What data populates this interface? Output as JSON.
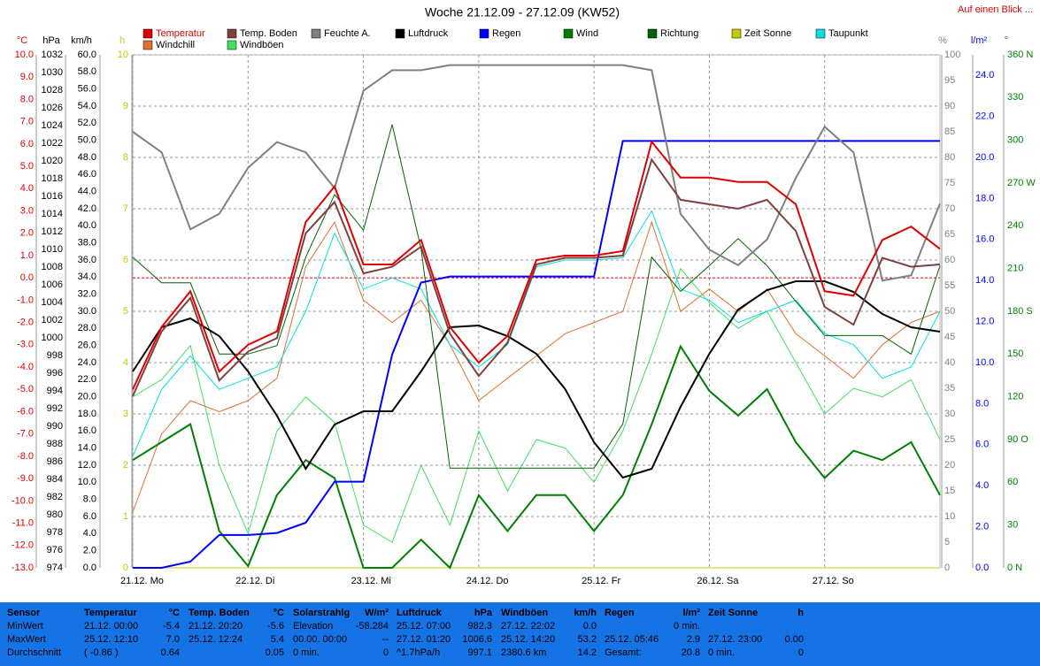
{
  "chart_data": {
    "type": "line",
    "title": "Woche 21.12.09 - 27.12.09 (KW52)",
    "xlim": [
      0,
      168
    ],
    "xticks": [
      {
        "value": 0,
        "label": "21.12. Mo"
      },
      {
        "value": 24,
        "label": "22.12. Di"
      },
      {
        "value": 48,
        "label": "23.12. Mi"
      },
      {
        "value": 72,
        "label": "24.12. Do"
      },
      {
        "value": 96,
        "label": "25.12. Fr"
      },
      {
        "value": 120,
        "label": "26.12. Sa"
      },
      {
        "value": 144,
        "label": "27.12. So"
      }
    ],
    "x": [
      0,
      6,
      12,
      18,
      24,
      30,
      36,
      42,
      48,
      54,
      60,
      66,
      72,
      78,
      84,
      90,
      96,
      102,
      108,
      114,
      120,
      126,
      132,
      138,
      144,
      150,
      156,
      162,
      168
    ],
    "axes": [
      {
        "label": "°C",
        "color": "#e00000",
        "lim": [
          -13,
          10
        ],
        "reference_line": 0,
        "ticks": [
          {
            "value": -13,
            "label": "-13.0"
          },
          {
            "value": -12,
            "label": "-12.0"
          },
          {
            "value": -11,
            "label": "-11.0"
          },
          {
            "value": -10,
            "label": "-10.0"
          },
          {
            "value": -9,
            "label": "-9.0"
          },
          {
            "value": -8,
            "label": "-8.0"
          },
          {
            "value": -7,
            "label": "-7.0"
          },
          {
            "value": -6,
            "label": "-6.0"
          },
          {
            "value": -5,
            "label": "-5.0"
          },
          {
            "value": -4,
            "label": "-4.0"
          },
          {
            "value": -3,
            "label": "-3.0"
          },
          {
            "value": -2,
            "label": "-2.0"
          },
          {
            "value": -1,
            "label": "-1.0"
          },
          {
            "value": 0,
            "label": "0.0"
          },
          {
            "value": 1,
            "label": "1.0"
          },
          {
            "value": 2,
            "label": "2.0"
          },
          {
            "value": 3,
            "label": "3.0"
          },
          {
            "value": 4,
            "label": "4.0"
          },
          {
            "value": 5,
            "label": "5.0"
          },
          {
            "value": 6,
            "label": "6.0"
          },
          {
            "value": 7,
            "label": "7.0"
          },
          {
            "value": 8,
            "label": "8.0"
          },
          {
            "value": 9,
            "label": "9.0"
          },
          {
            "value": 10,
            "label": "10.0"
          }
        ]
      },
      {
        "label": "hPa",
        "color": "#000000",
        "lim": [
          974,
          1032
        ],
        "ticks": [
          974,
          976,
          978,
          980,
          982,
          984,
          986,
          988,
          990,
          992,
          994,
          996,
          998,
          1000,
          1002,
          1004,
          1006,
          1008,
          1010,
          1012,
          1014,
          1016,
          1018,
          1020,
          1022,
          1024,
          1026,
          1028,
          1030,
          1032
        ]
      },
      {
        "label": "km/h",
        "color": "#000000",
        "lim": [
          0,
          60
        ],
        "ticks": [
          {
            "value": 0,
            "label": "0.0"
          },
          {
            "value": 2,
            "label": "2.0"
          },
          {
            "value": 4,
            "label": "4.0"
          },
          {
            "value": 6,
            "label": "6.0"
          },
          {
            "value": 8,
            "label": "8.0"
          },
          {
            "value": 10,
            "label": "10.0"
          },
          {
            "value": 12,
            "label": "12.0"
          },
          {
            "value": 14,
            "label": "14.0"
          },
          {
            "value": 16,
            "label": "16.0"
          },
          {
            "value": 18,
            "label": "18.0"
          },
          {
            "value": 20,
            "label": "20.0"
          },
          {
            "value": 22,
            "label": "22.0"
          },
          {
            "value": 24,
            "label": "24.0"
          },
          {
            "value": 26,
            "label": "26.0"
          },
          {
            "value": 28,
            "label": "28.0"
          },
          {
            "value": 30,
            "label": "30.0"
          },
          {
            "value": 32,
            "label": "32.0"
          },
          {
            "value": 34,
            "label": "34.0"
          },
          {
            "value": 36,
            "label": "36.0"
          },
          {
            "value": 38,
            "label": "38.0"
          },
          {
            "value": 40,
            "label": "40.0"
          },
          {
            "value": 42,
            "label": "42.0"
          },
          {
            "value": 44,
            "label": "44.0"
          },
          {
            "value": 46,
            "label": "46.0"
          },
          {
            "value": 48,
            "label": "48.0"
          },
          {
            "value": 50,
            "label": "50.0"
          },
          {
            "value": 52,
            "label": "52.0"
          },
          {
            "value": 54,
            "label": "54.0"
          },
          {
            "value": 56,
            "label": "56.0"
          },
          {
            "value": 58,
            "label": "58.0"
          },
          {
            "value": 60,
            "label": "60.0"
          }
        ]
      },
      {
        "label": "h",
        "color": "#c8c800",
        "lim": [
          0,
          10
        ],
        "grid": true,
        "ticks": [
          0,
          1,
          2,
          3,
          4,
          5,
          6,
          7,
          8,
          9,
          10
        ]
      },
      {
        "label": "%",
        "color": "#808080",
        "lim": [
          0,
          100
        ],
        "ticks": [
          0,
          5,
          10,
          15,
          20,
          25,
          30,
          35,
          40,
          45,
          50,
          55,
          60,
          65,
          70,
          75,
          80,
          85,
          90,
          95,
          100
        ]
      },
      {
        "label": "l/m²",
        "color": "#0000ff",
        "lim": [
          0,
          25
        ],
        "ticks": [
          {
            "value": 0,
            "label": "0.0"
          },
          {
            "value": 2,
            "label": "2.0"
          },
          {
            "value": 4,
            "label": "4.0"
          },
          {
            "value": 6,
            "label": "6.0"
          },
          {
            "value": 8,
            "label": "8.0"
          },
          {
            "value": 10,
            "label": "10.0"
          },
          {
            "value": 12,
            "label": "12.0"
          },
          {
            "value": 14,
            "label": "14.0"
          },
          {
            "value": 16,
            "label": "16.0"
          },
          {
            "value": 18,
            "label": "18.0"
          },
          {
            "value": 20,
            "label": "20.0"
          },
          {
            "value": 22,
            "label": "22.0"
          },
          {
            "value": 24,
            "label": "24.0"
          }
        ]
      },
      {
        "label": "°",
        "color": "#008000",
        "lim": [
          0,
          360
        ],
        "ticks": [
          {
            "value": 0,
            "label": "0 N"
          },
          30,
          60,
          {
            "value": 90,
            "label": "90 O"
          },
          120,
          150,
          {
            "value": 180,
            "label": "180 S"
          },
          210,
          240,
          {
            "value": 270,
            "label": "270 W"
          },
          300,
          330,
          {
            "value": 360,
            "label": "360 N"
          }
        ]
      }
    ],
    "series": [
      {
        "name": "Temperatur",
        "color": "#e00000",
        "axis": 0,
        "width": 2,
        "values": [
          -5.0,
          -2.2,
          -0.6,
          -4.2,
          -3.0,
          -2.4,
          2.5,
          4.1,
          0.6,
          0.6,
          1.7,
          -2.2,
          -3.8,
          -2.6,
          0.8,
          1.0,
          1.0,
          1.2,
          6.1,
          4.5,
          4.5,
          4.3,
          4.3,
          3.3,
          -0.6,
          -0.8,
          1.7,
          2.3,
          1.3
        ]
      },
      {
        "name": "Temp. Boden",
        "color": "#804040",
        "axis": 0,
        "width": 2,
        "values": [
          -5.3,
          -2.4,
          -0.9,
          -4.6,
          -3.3,
          -2.7,
          2.0,
          3.4,
          0.2,
          0.5,
          1.4,
          -2.5,
          -4.4,
          -2.9,
          0.6,
          0.9,
          0.9,
          1.0,
          5.3,
          3.5,
          3.3,
          3.1,
          3.5,
          2.1,
          -1.3,
          -2.1,
          0.9,
          0.5,
          0.6
        ]
      },
      {
        "name": "Feuchte A.",
        "color": "#808080",
        "axis": 4,
        "width": 2,
        "values": [
          85,
          81,
          66,
          69,
          78,
          83,
          81,
          74,
          93,
          97,
          97,
          98,
          98,
          98,
          98,
          98,
          98,
          98,
          97,
          69,
          62,
          59,
          64,
          76,
          86,
          81,
          56,
          57,
          71
        ]
      },
      {
        "name": "Luftdruck",
        "color": "#000000",
        "axis": 1,
        "width": 2,
        "values": [
          996.2,
          1001.2,
          1002.2,
          1000.2,
          996.2,
          991.2,
          985.2,
          990.2,
          991.7,
          991.7,
          996.2,
          1001.2,
          1001.4,
          1000.2,
          998.2,
          994.2,
          988.2,
          984.2,
          985.2,
          992.2,
          998.2,
          1003.2,
          1005.4,
          1006.4,
          1006.4,
          1005.2,
          1002.7,
          1001.2,
          1000.7
        ]
      },
      {
        "name": "Regen",
        "color": "#0000ff",
        "axis": 5,
        "width": 2,
        "values": [
          0,
          0,
          0.3,
          1.6,
          1.6,
          1.7,
          2.2,
          4.2,
          4.2,
          10.4,
          13.9,
          14.2,
          14.2,
          14.2,
          14.2,
          14.2,
          14.2,
          20.8,
          20.8,
          20.8,
          20.8,
          20.8,
          20.8,
          20.8,
          20.8,
          20.8,
          20.8,
          20.8,
          20.8
        ]
      },
      {
        "name": "Wind",
        "color": "#008000",
        "axis": 2,
        "width": 2,
        "values": [
          12.6,
          14.7,
          16.8,
          4.3,
          0.2,
          8.5,
          12.6,
          10.5,
          0,
          0,
          3.3,
          0,
          8.5,
          4.3,
          8.5,
          8.5,
          4.3,
          8.5,
          16.8,
          25.9,
          20.7,
          17.8,
          20.9,
          14.7,
          10.5,
          13.7,
          12.6,
          14.7,
          8.5
        ]
      },
      {
        "name": "Richtung",
        "color": "#006400",
        "axis": 6,
        "width": 1,
        "values": [
          218,
          200,
          200,
          150,
          150,
          156,
          218,
          262,
          237,
          311,
          224,
          70,
          70,
          70,
          70,
          70,
          70,
          101,
          218,
          194,
          212,
          231,
          212,
          187,
          163,
          163,
          163,
          150,
          212
        ]
      },
      {
        "name": "Zeit Sonne",
        "color": "#c8c800",
        "axis": 3,
        "width": 1,
        "values": [
          0,
          0,
          0,
          0,
          0,
          0,
          0,
          0,
          0,
          0,
          0,
          0,
          0,
          0,
          0,
          0,
          0,
          0,
          0,
          0,
          0,
          0,
          0,
          0,
          0,
          0,
          0,
          0,
          0
        ]
      },
      {
        "name": "Taupunkt",
        "color": "#00e0e0",
        "axis": 0,
        "width": 1,
        "values": [
          -8.0,
          -5.0,
          -3.5,
          -5.0,
          -4.5,
          -4.0,
          -1.5,
          2.0,
          -0.5,
          0.0,
          -0.5,
          -3.0,
          -4.0,
          -3.0,
          0.5,
          0.8,
          0.8,
          0.9,
          3.0,
          -0.5,
          -1.0,
          -2.0,
          -1.5,
          -1.0,
          -2.5,
          -3.0,
          -4.5,
          -4.0,
          -1.5
        ]
      },
      {
        "name": "Windchill",
        "color": "#e07030",
        "axis": 0,
        "width": 1,
        "values": [
          -10.5,
          -7.0,
          -5.5,
          -6.0,
          -5.5,
          -4.5,
          0.5,
          2.5,
          -1.0,
          -2.0,
          -1.0,
          -3.0,
          -5.5,
          -4.5,
          -3.5,
          -2.5,
          -2.0,
          -1.5,
          2.5,
          -1.5,
          -0.5,
          -1.5,
          -0.5,
          -2.5,
          -3.5,
          -4.5,
          -3.0,
          -2.0,
          -1.5
        ]
      },
      {
        "name": "Windböen",
        "color": "#40e060",
        "axis": 2,
        "width": 1,
        "values": [
          20,
          22,
          26,
          12,
          4,
          16,
          20,
          17,
          5,
          3,
          12,
          5,
          16,
          9,
          15,
          14,
          10,
          16,
          25,
          35,
          31,
          28,
          30,
          24,
          18,
          21,
          20,
          22,
          15
        ]
      }
    ]
  },
  "nav": {
    "link": "Auf einen Blick ..."
  },
  "stats": {
    "columns": [
      {
        "title": "Sensor",
        "rows": [
          [
            "MinWert"
          ],
          [
            "MaxWert"
          ],
          [
            "Durchschnitt"
          ]
        ]
      },
      {
        "title": "Temperatur",
        "unit": "°C",
        "rows": [
          [
            "21.12. 00:00",
            "-5.4"
          ],
          [
            "25.12. 12:10",
            "7.0"
          ],
          [
            "( -0.86 )",
            "0.64"
          ]
        ]
      },
      {
        "title": "Temp. Boden",
        "unit": "°C",
        "rows": [
          [
            "21.12. 20:20",
            "-5.6"
          ],
          [
            "25.12. 12:24",
            "5.4"
          ],
          [
            "0.05"
          ]
        ]
      },
      {
        "title": "Solarstrahlg",
        "unit": "W/m²",
        "rows": [
          [
            "Elevation",
            "-58.284"
          ],
          [
            "00.00. 00:00",
            "--"
          ],
          [
            "0 min.",
            "0"
          ]
        ]
      },
      {
        "title": "Luftdruck",
        "unit": "hPa",
        "rows": [
          [
            "25.12. 07:00",
            "982.3"
          ],
          [
            "27.12. 01:20",
            "1006.6"
          ],
          [
            "^1.7hPa/h",
            "997.1"
          ]
        ]
      },
      {
        "title": "Windböen",
        "unit": "km/h",
        "rows": [
          [
            "27.12. 22:02",
            "0.0"
          ],
          [
            "25.12. 14:20",
            "53.2"
          ],
          [
            "2380.6 km",
            "14.2"
          ]
        ]
      },
      {
        "title": "Regen",
        "unit": "l/m²",
        "rows": [
          [
            "0 min."
          ],
          [
            "25.12. 05:46",
            "2.9"
          ],
          [
            "Gesamt:",
            "20.8"
          ]
        ]
      },
      {
        "title": "Zeit Sonne",
        "unit": "h",
        "rows": [
          [],
          [
            "27.12. 23:00",
            "0.00"
          ],
          [
            "0 min.",
            "0"
          ]
        ]
      }
    ]
  }
}
